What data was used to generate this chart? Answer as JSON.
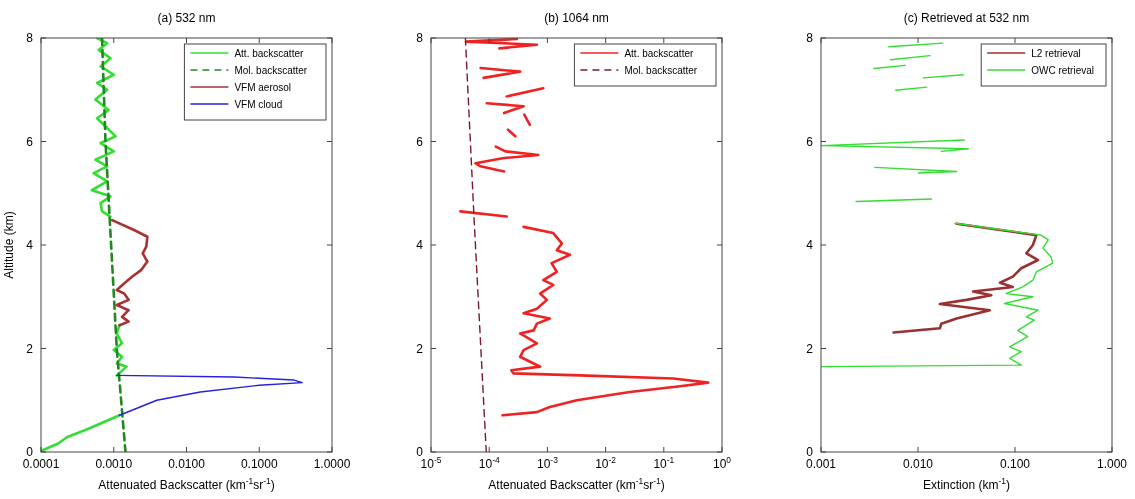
{
  "chart_data": [
    {
      "type": "line",
      "title": "(a) 532 nm",
      "xlabel": "Attenuated Backscatter (km$^{-1}$sr$^{-1}$)",
      "ylabel": "Altitude (km)",
      "log": "x",
      "xlim": [
        0.0001,
        1
      ],
      "xticks": [
        {
          "value": 0.0001,
          "label": "0.0001"
        },
        {
          "value": 0.001,
          "label": "0.0010"
        },
        {
          "value": 0.01,
          "label": "0.0100"
        },
        {
          "value": 0.1,
          "label": "0.1000"
        },
        {
          "value": 1,
          "label": "1.0000"
        }
      ],
      "ylim": [
        0,
        8
      ],
      "yticks": [
        0,
        2,
        4,
        6,
        8
      ],
      "legend": "top right",
      "series": [
        {
          "name": "Att. backscatter",
          "color": "#33dd33",
          "x": [
            0.00059,
            0.00081,
            0.00062,
            0.0009,
            0.00066,
            0.001,
            0.00059,
            0.00081,
            0.00056,
            0.00085,
            0.00059,
            0.00081,
            0.00106,
            0.00066,
            0.001,
            0.00056,
            0.00081,
            0.00053,
            0.00081,
            0.0005,
            0.0009,
            0.00066,
            0.00069,
            0.0009,
            null,
            0.0012,
            0.0011,
            0.0013,
            0.001,
            0.0013,
            0.0011,
            0.0015,
            0.0011,
            null,
            0.0012,
            0.00066,
            0.0004,
            0.00023,
            0.00017,
            0.000103,
            0.0001
          ],
          "values": [
            8,
            7.9,
            7.77,
            7.61,
            7.45,
            7.29,
            7.13,
            7,
            6.81,
            6.61,
            6.45,
            6.26,
            6.1,
            5.97,
            5.81,
            5.65,
            5.52,
            5.39,
            5.23,
            5.06,
            4.94,
            4.81,
            4.65,
            4.55,
            null,
            2.45,
            2.29,
            2.1,
            1.97,
            1.84,
            1.71,
            1.65,
            1.48,
            null,
            0.71,
            0.55,
            0.42,
            0.29,
            0.16,
            0.03,
            0
          ]
        },
        {
          "name": "Mol. backscatter",
          "color": "#228822",
          "line_style": "dashed",
          "x": [
            0.00069,
            0.00077,
            0.00092,
            0.0011,
            0.00145
          ],
          "values": [
            8,
            6,
            4,
            2,
            0
          ]
        },
        {
          "name": "VFM aerosol",
          "color": "#a83232",
          "x": [
            0.00095,
            0.0019,
            0.0029,
            0.0028,
            0.0025,
            0.0029,
            0.0024,
            0.0018,
            0.0014,
            0.0011,
            0.0014,
            0.0016,
            0.0011,
            0.0016,
            0.0013,
            0.0016,
            0.0012
          ],
          "values": [
            4.48,
            4.29,
            4.16,
            3.97,
            3.84,
            3.68,
            3.52,
            3.39,
            3.26,
            3.13,
            3.06,
            2.94,
            2.84,
            2.74,
            2.61,
            2.52,
            2.45
          ]
        },
        {
          "name": "VFM cloud",
          "color": "#2222dd",
          "x": [
            0.0011,
            0.045,
            0.3,
            0.39,
            0.1,
            0.0155,
            0.0039,
            0.0023,
            0.0012
          ],
          "values": [
            1.48,
            1.45,
            1.39,
            1.34,
            1.29,
            1.16,
            1,
            0.87,
            0.71
          ]
        }
      ]
    },
    {
      "type": "line",
      "title": "(b) 1064 nm",
      "xlabel": "Attenuated Backscatter (km$^{-1}$sr$^{-1}$)",
      "log": "x",
      "xlim": [
        1e-05,
        1
      ],
      "xticks": [
        {
          "value": 1e-05,
          "label": "10$^{-5}$"
        },
        {
          "value": 0.0001,
          "label": "10$^{-4}$"
        },
        {
          "value": 0.001,
          "label": "10$^{-3}$"
        },
        {
          "value": 0.01,
          "label": "10$^{-2}$"
        },
        {
          "value": 0.1,
          "label": "10$^{-1}$"
        },
        {
          "value": 1,
          "label": "10$^{0}$"
        }
      ],
      "ylim": [
        0,
        8
      ],
      "yticks": [
        0,
        2,
        4,
        6,
        8
      ],
      "legend": "top right",
      "series": [
        {
          "name": "Att. backscatter",
          "color": "#ee2222",
          "x": [
            0.0003,
            4e-05,
            0.00066,
            0.00015,
            null,
            7.1e-05,
            0.00034,
            8e-05,
            null,
            0.00085,
            0.0002,
            null,
            9.1e-05,
            0.00039,
            0.00018,
            null,
            0.0004,
            0.0005,
            null,
            0.00021,
            0.00028,
            null,
            0.00013,
            0.00019,
            0.0007,
            0.00018,
            5.8e-05,
            7.1e-05,
            0.00018,
            null,
            3.2e-05,
            0.0002,
            null,
            0.00039,
            0.00126,
            0.00177,
            0.00145,
            0.00244,
            0.00118,
            0.00145,
            0.00085,
            0.00126,
            0.00075,
            0.00098,
            0.00066,
            0.00039,
            0.0011,
            0.00066,
            0.00058,
            0.00034,
            0.00066,
            0.00039,
            0.00034,
            0.00058,
            0.00075,
            0.00024,
            0.00026,
            0.0036,
            0.145,
            0.58,
            0.19,
            0.026,
            0.0032,
            0.0011,
            0.00066,
            0.00017
          ],
          "values": [
            7.98,
            7.93,
            7.87,
            7.8,
            null,
            7.42,
            7.35,
            7.23,
            null,
            7.03,
            6.87,
            null,
            6.74,
            6.68,
            6.55,
            null,
            6.52,
            6.32,
            null,
            6.23,
            6.1,
            null,
            5.9,
            5.81,
            5.74,
            5.68,
            5.58,
            5.52,
            5.42,
            null,
            4.65,
            4.55,
            null,
            4.35,
            4.23,
            4.03,
            3.9,
            3.81,
            3.65,
            3.48,
            3.32,
            3.23,
            3.06,
            2.94,
            2.77,
            2.68,
            2.58,
            2.48,
            2.35,
            2.29,
            2.1,
            1.97,
            1.84,
            1.71,
            1.65,
            1.58,
            1.52,
            1.48,
            1.42,
            1.34,
            1.27,
            1.16,
            1,
            0.87,
            0.77,
            0.71
          ]
        },
        {
          "name": "Mol. backscatter",
          "color": "#7a1a2a",
          "line_style": "dashed",
          "x": [
            3.9e-05,
            5.5e-05,
            8.9e-05
          ],
          "values": [
            8,
            4.5,
            0
          ]
        }
      ]
    },
    {
      "type": "line",
      "title": "(c) Retrieved at 532 nm",
      "xlabel": "Extinction (km$^{-1}$)",
      "log": "x",
      "xlim": [
        0.001,
        1
      ],
      "xticks": [
        {
          "value": 0.001,
          "label": "0.001"
        },
        {
          "value": 0.01,
          "label": "0.010"
        },
        {
          "value": 0.1,
          "label": "0.100"
        },
        {
          "value": 1,
          "label": "1.000"
        }
      ],
      "ylim": [
        0,
        8
      ],
      "yticks": [
        0,
        2,
        4,
        6,
        8
      ],
      "legend": "top right",
      "series": [
        {
          "name": "L2 retrieval",
          "color": "#9b3030",
          "x": [
            0.025,
            0.166,
            0.153,
            0.131,
            0.173,
            0.116,
            0.095,
            0.07,
            0.095,
            0.037,
            0.057,
            0.0316,
            0.0168,
            0.055,
            0.025,
            0.0174,
            0.0168,
            0.0056
          ],
          "values": [
            4.41,
            4.19,
            4,
            3.84,
            3.71,
            3.55,
            3.39,
            3.27,
            3.19,
            3.1,
            3.03,
            2.94,
            2.86,
            2.74,
            2.58,
            2.48,
            2.39,
            2.31
          ]
        },
        {
          "name": "OWC retrieval",
          "color": "#33dd33",
          "x": [
            0.005,
            0.018,
            null,
            0.0052,
            0.0133,
            null,
            0.0035,
            0.0074,
            null,
            0.0113,
            0.0293,
            null,
            0.0059,
            0.0123,
            null,
            0.03,
            0.001,
            0.033,
            0.0174,
            null,
            0.0036,
            0.025,
            0.0101,
            null,
            0.0023,
            0.0138,
            null,
            0.024,
            0.186,
            0.22,
            0.194,
            0.235,
            0.245,
            0.166,
            0.153,
            0.12,
            0.081,
            0.153,
            0.078,
            0.173,
            0.131,
            0.158,
            0.107,
            0.135,
            0.088,
            0.116,
            0.088,
            0.116,
            0.001
          ],
          "values": [
            7.83,
            7.9,
            null,
            7.58,
            7.66,
            null,
            7.41,
            7.47,
            null,
            7.23,
            7.29,
            null,
            6.99,
            7.05,
            null,
            6.03,
            5.92,
            5.86,
            5.81,
            null,
            5.5,
            5.42,
            5.39,
            null,
            4.84,
            4.89,
            null,
            4.42,
            4.19,
            4.1,
            3.94,
            3.77,
            3.65,
            3.48,
            3.32,
            3.19,
            3.06,
            3,
            2.87,
            2.74,
            2.61,
            2.55,
            2.35,
            2.23,
            2.03,
            1.94,
            1.81,
            1.68,
            1.65
          ]
        }
      ]
    }
  ]
}
